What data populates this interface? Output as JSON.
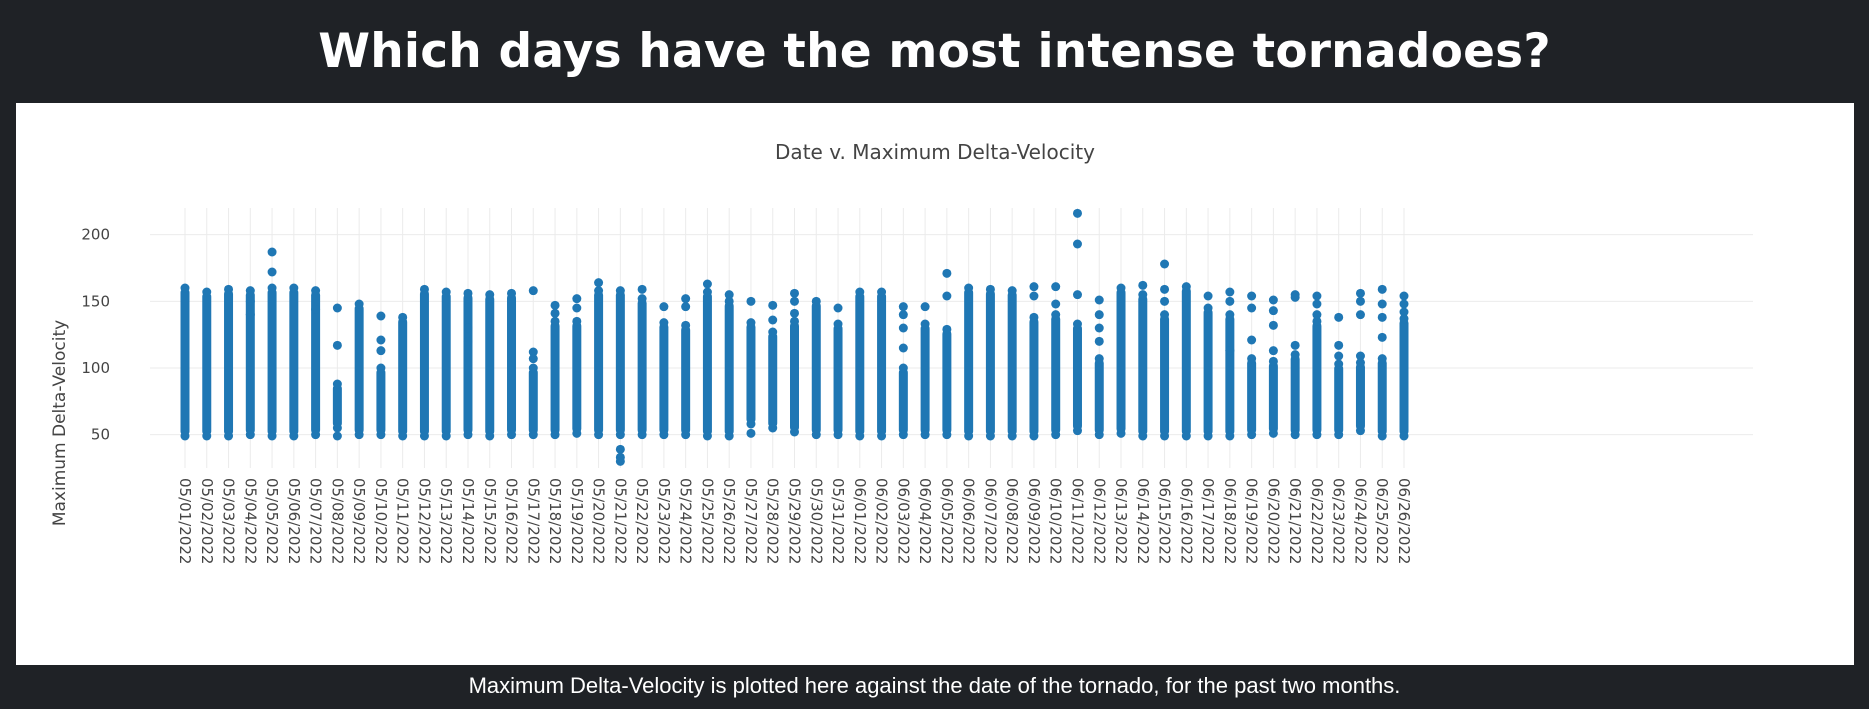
{
  "page": {
    "title": "Which days have the most intense tornadoes?",
    "caption": "Maximum Delta-Velocity is plotted here against the date of the tornado, for the past two months."
  },
  "colors": {
    "background": "#1f2226",
    "panel": "#ffffff",
    "marker": "#1f77b4",
    "grid": "#ebebeb",
    "axis_text": "#444444"
  },
  "chart_data": {
    "type": "scatter",
    "title": "Date v. Maximum Delta-Velocity",
    "xlabel": "",
    "ylabel": "Maximum Delta-Velocity",
    "ylim": [
      25,
      220
    ],
    "yticks": [
      50,
      100,
      150,
      200
    ],
    "grid": true,
    "legend": "none",
    "marker_color": "#1f77b4",
    "x": [
      "05/01/2022",
      "05/02/2022",
      "05/03/2022",
      "05/04/2022",
      "05/05/2022",
      "05/06/2022",
      "05/07/2022",
      "05/08/2022",
      "05/09/2022",
      "05/10/2022",
      "05/11/2022",
      "05/12/2022",
      "05/13/2022",
      "05/14/2022",
      "05/15/2022",
      "05/16/2022",
      "05/17/2022",
      "05/18/2022",
      "05/19/2022",
      "05/20/2022",
      "05/21/2022",
      "05/22/2022",
      "05/23/2022",
      "05/24/2022",
      "05/25/2022",
      "05/26/2022",
      "05/27/2022",
      "05/28/2022",
      "05/29/2022",
      "05/30/2022",
      "05/31/2022",
      "06/01/2022",
      "06/02/2022",
      "06/03/2022",
      "06/04/2022",
      "06/05/2022",
      "06/06/2022",
      "06/07/2022",
      "06/08/2022",
      "06/09/2022",
      "06/10/2022",
      "06/11/2022",
      "06/12/2022",
      "06/13/2022",
      "06/14/2022",
      "06/15/2022",
      "06/16/2022",
      "06/17/2022",
      "06/18/2022",
      "06/19/2022",
      "06/20/2022",
      "06/21/2022",
      "06/22/2022",
      "06/23/2022",
      "06/24/2022",
      "06/25/2022",
      "06/26/2022"
    ],
    "points": [
      {
        "date": "05/01/2022",
        "min": 49,
        "max": 160,
        "extra": []
      },
      {
        "date": "05/02/2022",
        "min": 49,
        "max": 157,
        "extra": []
      },
      {
        "date": "05/03/2022",
        "min": 49,
        "max": 159,
        "extra": []
      },
      {
        "date": "05/04/2022",
        "min": 50,
        "max": 158,
        "extra": [
          150,
          140
        ]
      },
      {
        "date": "05/05/2022",
        "min": 49,
        "max": 160,
        "extra": [
          187,
          172
        ]
      },
      {
        "date": "05/06/2022",
        "min": 49,
        "max": 160,
        "extra": []
      },
      {
        "date": "05/07/2022",
        "min": 50,
        "max": 158,
        "extra": [
          144
        ]
      },
      {
        "date": "05/08/2022",
        "min": 55,
        "max": 88,
        "extra": [
          145,
          117,
          49
        ]
      },
      {
        "date": "05/09/2022",
        "min": 50,
        "max": 148,
        "extra": []
      },
      {
        "date": "05/10/2022",
        "min": 50,
        "max": 100,
        "extra": [
          139,
          121,
          113
        ]
      },
      {
        "date": "05/11/2022",
        "min": 49,
        "max": 138,
        "extra": []
      },
      {
        "date": "05/12/2022",
        "min": 49,
        "max": 159,
        "extra": []
      },
      {
        "date": "05/13/2022",
        "min": 49,
        "max": 157,
        "extra": []
      },
      {
        "date": "05/14/2022",
        "min": 50,
        "max": 156,
        "extra": [
          130,
          120
        ]
      },
      {
        "date": "05/15/2022",
        "min": 49,
        "max": 155,
        "extra": []
      },
      {
        "date": "05/16/2022",
        "min": 50,
        "max": 156,
        "extra": []
      },
      {
        "date": "05/17/2022",
        "min": 50,
        "max": 100,
        "extra": [
          158,
          112,
          107
        ]
      },
      {
        "date": "05/18/2022",
        "min": 50,
        "max": 135,
        "extra": [
          147,
          141
        ]
      },
      {
        "date": "05/19/2022",
        "min": 51,
        "max": 135,
        "extra": [
          152,
          145
        ]
      },
      {
        "date": "05/20/2022",
        "min": 50,
        "max": 158,
        "extra": [
          164
        ]
      },
      {
        "date": "05/21/2022",
        "min": 50,
        "max": 158,
        "extra": [
          39,
          33,
          30
        ]
      },
      {
        "date": "05/22/2022",
        "min": 50,
        "max": 152,
        "extra": [
          159
        ]
      },
      {
        "date": "05/23/2022",
        "min": 50,
        "max": 134,
        "extra": [
          146
        ]
      },
      {
        "date": "05/24/2022",
        "min": 50,
        "max": 132,
        "extra": [
          152,
          146
        ]
      },
      {
        "date": "05/25/2022",
        "min": 49,
        "max": 157,
        "extra": [
          163
        ]
      },
      {
        "date": "05/26/2022",
        "min": 49,
        "max": 150,
        "extra": [
          155
        ]
      },
      {
        "date": "05/27/2022",
        "min": 58,
        "max": 134,
        "extra": [
          150,
          51
        ]
      },
      {
        "date": "05/28/2022",
        "min": 55,
        "max": 127,
        "extra": [
          147,
          136
        ]
      },
      {
        "date": "05/29/2022",
        "min": 52,
        "max": 135,
        "extra": [
          156,
          150,
          141
        ]
      },
      {
        "date": "05/30/2022",
        "min": 50,
        "max": 150,
        "extra": []
      },
      {
        "date": "05/31/2022",
        "min": 50,
        "max": 133,
        "extra": [
          145
        ]
      },
      {
        "date": "06/01/2022",
        "min": 49,
        "max": 157,
        "extra": []
      },
      {
        "date": "06/02/2022",
        "min": 49,
        "max": 157,
        "extra": []
      },
      {
        "date": "06/03/2022",
        "min": 50,
        "max": 100,
        "extra": [
          146,
          140,
          130,
          115
        ]
      },
      {
        "date": "06/04/2022",
        "min": 50,
        "max": 133,
        "extra": [
          146
        ]
      },
      {
        "date": "06/05/2022",
        "min": 50,
        "max": 129,
        "extra": [
          171,
          154
        ]
      },
      {
        "date": "06/06/2022",
        "min": 49,
        "max": 160,
        "extra": []
      },
      {
        "date": "06/07/2022",
        "min": 49,
        "max": 159,
        "extra": []
      },
      {
        "date": "06/08/2022",
        "min": 49,
        "max": 158,
        "extra": []
      },
      {
        "date": "06/09/2022",
        "min": 49,
        "max": 138,
        "extra": [
          161,
          154
        ]
      },
      {
        "date": "06/10/2022",
        "min": 50,
        "max": 140,
        "extra": [
          161,
          148
        ]
      },
      {
        "date": "06/11/2022",
        "min": 53,
        "max": 133,
        "extra": [
          216,
          193,
          155
        ]
      },
      {
        "date": "06/12/2022",
        "min": 50,
        "max": 107,
        "extra": [
          151,
          140,
          130,
          120
        ]
      },
      {
        "date": "06/13/2022",
        "min": 51,
        "max": 160,
        "extra": []
      },
      {
        "date": "06/14/2022",
        "min": 49,
        "max": 155,
        "extra": [
          162
        ]
      },
      {
        "date": "06/15/2022",
        "min": 49,
        "max": 140,
        "extra": [
          178,
          159,
          150
        ]
      },
      {
        "date": "06/16/2022",
        "min": 49,
        "max": 161,
        "extra": []
      },
      {
        "date": "06/17/2022",
        "min": 49,
        "max": 145,
        "extra": [
          154
        ]
      },
      {
        "date": "06/18/2022",
        "min": 49,
        "max": 140,
        "extra": [
          157,
          150,
          113
        ]
      },
      {
        "date": "06/19/2022",
        "min": 50,
        "max": 107,
        "extra": [
          154,
          145,
          121
        ]
      },
      {
        "date": "06/20/2022",
        "min": 51,
        "max": 105,
        "extra": [
          151,
          143,
          132,
          113
        ]
      },
      {
        "date": "06/21/2022",
        "min": 50,
        "max": 110,
        "extra": [
          155,
          153,
          117
        ]
      },
      {
        "date": "06/22/2022",
        "min": 50,
        "max": 135,
        "extra": [
          154,
          148,
          140
        ]
      },
      {
        "date": "06/23/2022",
        "min": 50,
        "max": 103,
        "extra": [
          138,
          117,
          109
        ]
      },
      {
        "date": "06/24/2022",
        "min": 53,
        "max": 104,
        "extra": [
          156,
          150,
          140,
          109
        ]
      },
      {
        "date": "06/25/2022",
        "min": 49,
        "max": 107,
        "extra": [
          159,
          148,
          138,
          123
        ]
      },
      {
        "date": "06/26/2022",
        "min": 49,
        "max": 137,
        "extra": [
          154,
          148,
          142
        ]
      }
    ]
  }
}
